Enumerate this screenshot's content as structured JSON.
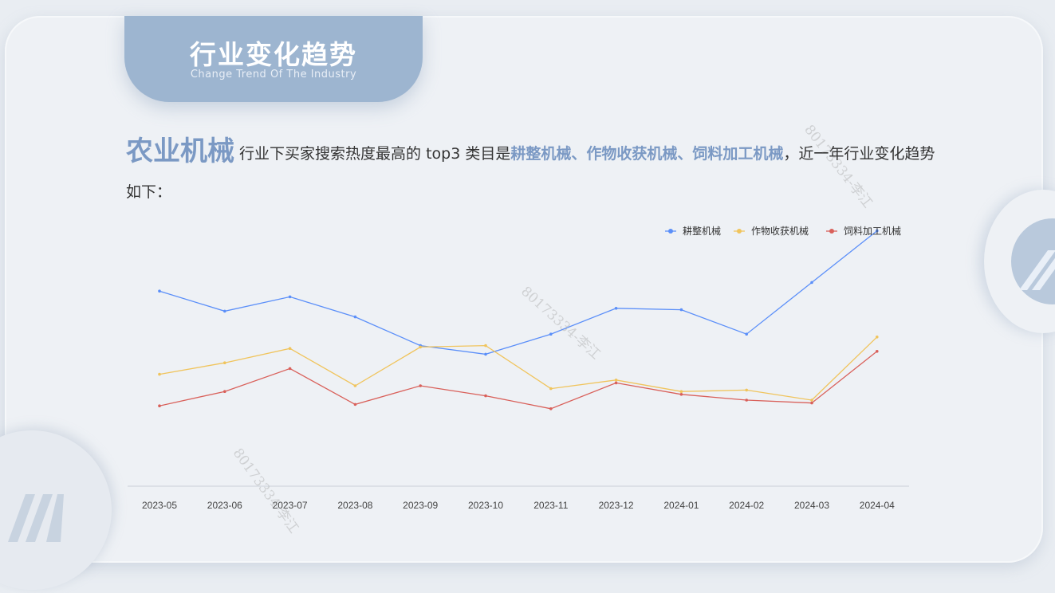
{
  "header": {
    "title": "行业变化趋势",
    "subtitle": "Change Trend Of The Industry"
  },
  "intro": {
    "category": "农业机械",
    "text_before": " 行业下买家搜索热度最高的 top3 类目是",
    "highlight": "耕整机械、作物收获机械、饲料加工机械",
    "text_after": "，近一年行业变化趋势如下："
  },
  "watermark": "80173334-李江",
  "colors": {
    "accent": "#7b99c4",
    "tab": "#9db5d0",
    "background": "#eef1f5"
  },
  "chart_data": {
    "type": "line",
    "categories": [
      "2023-05",
      "2023-06",
      "2023-07",
      "2023-08",
      "2023-09",
      "2023-10",
      "2023-11",
      "2023-12",
      "2024-01",
      "2024-02",
      "2024-03",
      "2024-04"
    ],
    "series": [
      {
        "name": "耕整机械",
        "color": "#5b8ff9",
        "values": [
          68,
          61,
          66,
          59,
          49,
          46,
          53,
          62,
          61.5,
          53,
          71,
          89
        ]
      },
      {
        "name": "作物收获机械",
        "color": "#f0c45c",
        "values": [
          39,
          43,
          48,
          35,
          48.5,
          49,
          34,
          37,
          33,
          33.5,
          30,
          52
        ]
      },
      {
        "name": "饲料加工机械",
        "color": "#d9605a",
        "values": [
          28,
          33,
          41,
          28.5,
          35,
          31.5,
          27,
          36,
          32,
          30,
          29,
          47
        ]
      }
    ],
    "ylim": [
      0,
      100
    ],
    "legend": "top-right",
    "grid": false
  }
}
